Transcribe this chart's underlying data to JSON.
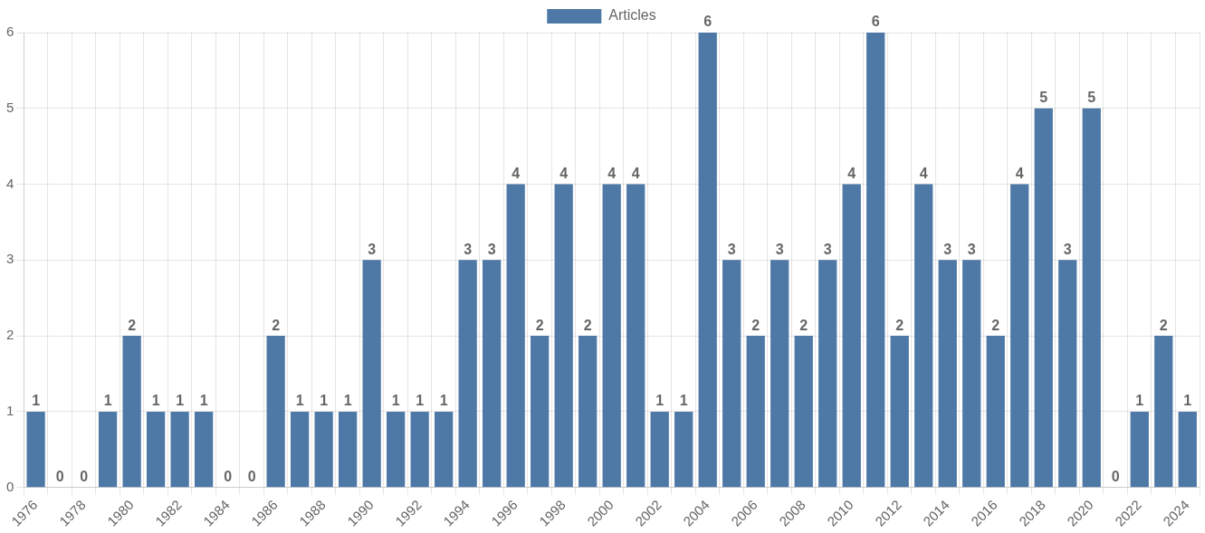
{
  "chart_data": {
    "type": "bar",
    "categories": [
      "1976",
      null,
      "1978",
      null,
      "1980",
      null,
      "1982",
      null,
      "1984",
      null,
      "1986",
      null,
      "1988",
      null,
      "1990",
      null,
      "1992",
      null,
      "1994",
      null,
      "1996",
      null,
      "1998",
      null,
      "2000",
      null,
      "2002",
      null,
      "2004",
      null,
      "2006",
      null,
      "2008",
      null,
      "2010",
      null,
      "2012",
      null,
      "2014",
      null,
      "2016",
      null,
      "2018",
      null,
      "2020",
      null,
      "2022",
      null,
      "2024"
    ],
    "series": [
      {
        "name": "Articles",
        "color": "#4e79a7",
        "values": [
          1,
          0,
          0,
          1,
          2,
          1,
          1,
          1,
          0,
          0,
          2,
          1,
          1,
          1,
          3,
          1,
          1,
          1,
          3,
          3,
          4,
          2,
          4,
          2,
          4,
          4,
          1,
          1,
          6,
          3,
          2,
          3,
          2,
          3,
          4,
          6,
          2,
          4,
          3,
          3,
          2,
          4,
          5,
          3,
          5,
          0,
          1,
          2,
          1
        ]
      }
    ],
    "ylim": [
      0,
      6
    ],
    "yticks": [
      0,
      1,
      2,
      3,
      4,
      5,
      6
    ],
    "grid": true,
    "legend": "top",
    "data_labels": true
  }
}
